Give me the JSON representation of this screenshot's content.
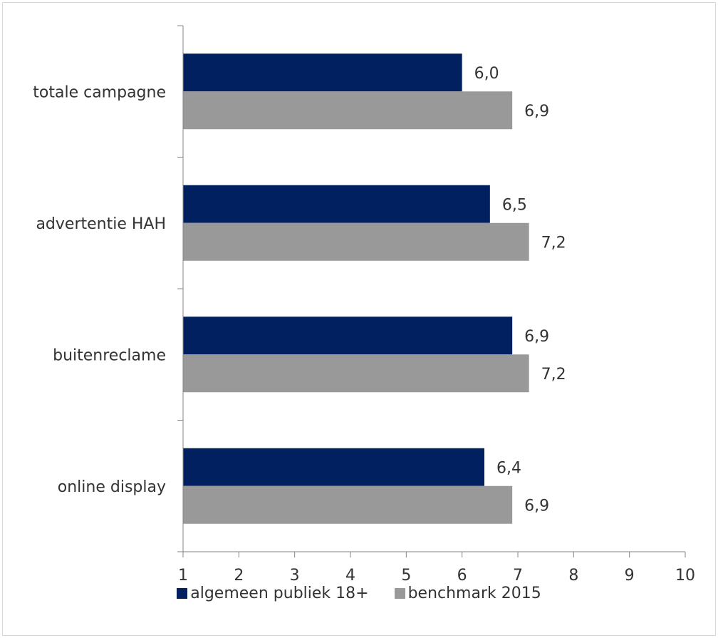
{
  "chart_data": {
    "type": "bar",
    "orientation": "horizontal",
    "categories": [
      "totale campagne",
      "advertentie HAH",
      "buitenreclame",
      "online display"
    ],
    "series": [
      {
        "name": "algemeen publiek 18+",
        "color": "#002060",
        "values": [
          6.0,
          6.5,
          6.9,
          6.4
        ],
        "labels": [
          "6,0",
          "6,5",
          "6,9",
          "6,4"
        ]
      },
      {
        "name": "benchmark 2015",
        "color": "#999999",
        "values": [
          6.9,
          7.2,
          7.2,
          6.9
        ],
        "labels": [
          "6,9",
          "7,2",
          "7,2",
          "6,9"
        ]
      }
    ],
    "xlim": [
      1,
      10
    ],
    "xticks": [
      "1",
      "2",
      "3",
      "4",
      "5",
      "6",
      "7",
      "8",
      "9",
      "10"
    ],
    "title": "",
    "xlabel": "",
    "ylabel": "",
    "grid": false,
    "legend_position": "bottom"
  }
}
